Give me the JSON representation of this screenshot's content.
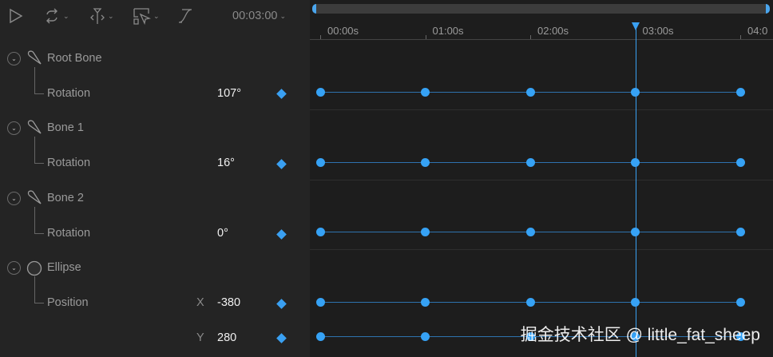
{
  "toolbar": {
    "icons": [
      "play-icon",
      "loop-icon",
      "split-icon",
      "select-icon",
      "easing-curve-icon"
    ],
    "time": "00:03:00"
  },
  "layers": [
    {
      "name": "Root Bone",
      "icon": "bone-icon",
      "props": [
        {
          "label": "Rotation",
          "axis": "",
          "value": "107°"
        }
      ]
    },
    {
      "name": "Bone 1",
      "icon": "bone-icon",
      "props": [
        {
          "label": "Rotation",
          "axis": "",
          "value": "16°"
        }
      ]
    },
    {
      "name": "Bone 2",
      "icon": "bone-icon",
      "props": [
        {
          "label": "Rotation",
          "axis": "",
          "value": "0°"
        }
      ]
    },
    {
      "name": "Ellipse",
      "icon": "ellipse-icon",
      "props": [
        {
          "label": "Position",
          "axis": "X",
          "value": "-380"
        },
        {
          "label": "",
          "axis": "Y",
          "value": "280"
        }
      ]
    }
  ],
  "timeline": {
    "ticks": [
      "00:00s",
      "01:00s",
      "02:00s",
      "03:00s",
      "04:0"
    ],
    "playhead_seconds": 3,
    "keyframe_seconds": [
      0,
      1,
      2,
      3,
      4
    ],
    "accent": "#3aa0f2"
  },
  "watermark": "掘金技术社区 @ little_fat_sheep"
}
